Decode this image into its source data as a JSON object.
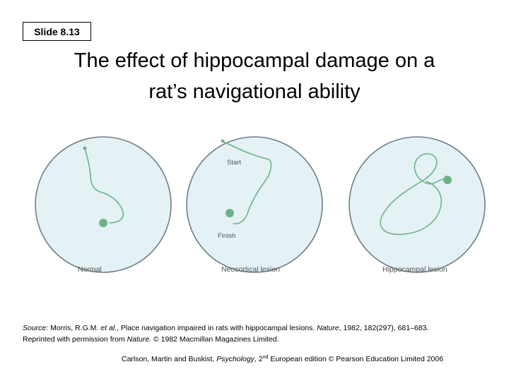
{
  "slide_label": "Slide 8.13",
  "title": {
    "line1": "The effect of hippocampal damage on a",
    "line2": "rat’s navigational ability"
  },
  "panels": [
    {
      "caption": "Normal"
    },
    {
      "caption": "Neocortical lesion",
      "start_label": "Start",
      "finish_label": "Finish"
    },
    {
      "caption": "Hippocampal lesion"
    }
  ],
  "colors": {
    "pool_fill": "#e4f1f5",
    "pool_stroke": "#6f7e86",
    "path": "#6db386",
    "platform": "#6db386"
  },
  "source": {
    "prefix": "Source:",
    "authors": " Morris, R.G.M. ",
    "et_al": "et al.",
    "mid": ", Place navigation impaired in rats with hippocampal lesions. ",
    "journal": "Nature",
    "citation": ", 1982, 182(297), 681–683.",
    "line2_prefix": "Reprinted with permission from ",
    "line2_journal": "Nature.",
    "line2_rest": " © 1982 Macmillan Magazines Limited."
  },
  "credit": {
    "authors": "Carlson, Martin and Buskist, ",
    "book": "Psychology",
    "edition_pre": ", 2",
    "edition_sup": "nd",
    "rest": " European edition © Pearson Education Limited 2006"
  }
}
